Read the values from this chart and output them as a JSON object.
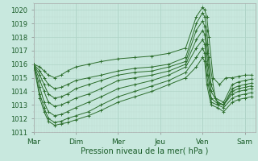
{
  "xlabel": "Pression niveau de la mer( hPa )",
  "bg_color": "#c8e8de",
  "grid_major_color": "#b0d4c8",
  "grid_minor_color": "#c0dcd4",
  "line_color": "#2d6e2d",
  "ylim": [
    1011.0,
    1020.5
  ],
  "xlim": [
    0.0,
    5.25
  ],
  "yticks": [
    1011,
    1012,
    1013,
    1014,
    1015,
    1016,
    1017,
    1018,
    1019,
    1020
  ],
  "days": [
    "Mar",
    "Dim",
    "Mer",
    "Jeu",
    "Ven",
    "Sam"
  ],
  "day_x": [
    0.0,
    1.0,
    2.0,
    3.0,
    4.0,
    5.0
  ],
  "lines": [
    {
      "x": [
        0.0,
        0.15,
        0.25,
        0.35,
        0.5,
        0.65,
        0.8,
        1.0,
        1.3,
        1.6,
        2.0,
        2.4,
        2.8,
        3.2,
        3.6,
        3.85,
        4.0,
        4.05,
        4.1,
        4.15,
        4.25,
        4.4,
        4.55,
        4.7,
        4.85,
        5.0,
        5.15
      ],
      "y": [
        1016.0,
        1015.8,
        1015.5,
        1015.2,
        1015.0,
        1015.2,
        1015.5,
        1015.8,
        1016.0,
        1016.2,
        1016.4,
        1016.5,
        1016.6,
        1016.8,
        1017.2,
        1019.5,
        1020.2,
        1020.0,
        1019.5,
        1018.0,
        1015.0,
        1014.5,
        1015.0,
        1015.0,
        1015.1,
        1015.2,
        1015.2
      ]
    },
    {
      "x": [
        0.0,
        0.15,
        0.25,
        0.35,
        0.5,
        0.65,
        0.8,
        1.0,
        1.3,
        1.6,
        2.0,
        2.4,
        2.8,
        3.2,
        3.6,
        3.85,
        4.0,
        4.05,
        4.1,
        4.15,
        4.3,
        4.5,
        4.7,
        4.85,
        5.0,
        5.15
      ],
      "y": [
        1016.0,
        1015.5,
        1015.0,
        1014.5,
        1014.2,
        1014.3,
        1014.5,
        1014.8,
        1015.0,
        1015.2,
        1015.5,
        1015.7,
        1015.8,
        1016.0,
        1016.5,
        1019.0,
        1019.8,
        1019.5,
        1018.5,
        1016.5,
        1013.5,
        1013.2,
        1014.5,
        1014.7,
        1014.8,
        1014.9
      ]
    },
    {
      "x": [
        0.0,
        0.15,
        0.25,
        0.35,
        0.5,
        0.65,
        0.8,
        1.0,
        1.3,
        1.6,
        2.0,
        2.4,
        2.8,
        3.2,
        3.6,
        3.85,
        4.0,
        4.05,
        4.1,
        4.2,
        4.35,
        4.5,
        4.7,
        4.85,
        5.0,
        5.15
      ],
      "y": [
        1016.0,
        1015.2,
        1014.5,
        1013.8,
        1013.5,
        1013.6,
        1013.8,
        1014.2,
        1014.5,
        1014.8,
        1015.2,
        1015.4,
        1015.5,
        1015.8,
        1016.2,
        1018.5,
        1019.2,
        1018.8,
        1017.5,
        1014.5,
        1013.2,
        1013.0,
        1014.2,
        1014.4,
        1014.5,
        1014.6
      ]
    },
    {
      "x": [
        0.0,
        0.15,
        0.25,
        0.35,
        0.5,
        0.65,
        0.8,
        1.0,
        1.3,
        1.6,
        2.0,
        2.4,
        2.8,
        3.2,
        3.6,
        3.85,
        4.0,
        4.05,
        4.1,
        4.2,
        4.35,
        4.5,
        4.7,
        4.85,
        5.0,
        5.15
      ],
      "y": [
        1016.0,
        1014.8,
        1014.0,
        1013.2,
        1012.9,
        1013.0,
        1013.2,
        1013.5,
        1013.8,
        1014.2,
        1014.8,
        1015.0,
        1015.2,
        1015.5,
        1016.0,
        1017.8,
        1018.5,
        1018.2,
        1016.8,
        1014.0,
        1013.2,
        1013.0,
        1014.0,
        1014.2,
        1014.3,
        1014.4
      ]
    },
    {
      "x": [
        0.0,
        0.15,
        0.25,
        0.35,
        0.5,
        0.65,
        0.8,
        1.0,
        1.3,
        1.6,
        2.0,
        2.4,
        2.8,
        3.2,
        3.6,
        3.85,
        4.0,
        4.05,
        4.1,
        4.2,
        4.35,
        4.5,
        4.7,
        4.85,
        5.0,
        5.15
      ],
      "y": [
        1016.0,
        1014.3,
        1013.2,
        1012.5,
        1012.2,
        1012.3,
        1012.5,
        1012.8,
        1013.2,
        1013.6,
        1014.2,
        1014.5,
        1014.8,
        1015.2,
        1015.8,
        1017.2,
        1017.8,
        1017.5,
        1016.0,
        1013.5,
        1013.1,
        1013.0,
        1013.8,
        1014.0,
        1014.1,
        1014.2
      ]
    },
    {
      "x": [
        0.0,
        0.15,
        0.25,
        0.35,
        0.5,
        0.65,
        0.8,
        1.0,
        1.3,
        1.6,
        2.0,
        2.4,
        2.8,
        3.2,
        3.6,
        3.85,
        4.0,
        4.05,
        4.1,
        4.2,
        4.35,
        4.5,
        4.7,
        4.85,
        5.0,
        5.15
      ],
      "y": [
        1016.0,
        1013.8,
        1012.8,
        1012.0,
        1011.7,
        1011.8,
        1012.0,
        1012.2,
        1012.5,
        1013.0,
        1013.6,
        1014.0,
        1014.4,
        1014.8,
        1015.4,
        1016.5,
        1017.2,
        1016.8,
        1015.2,
        1013.2,
        1013.0,
        1012.8,
        1013.5,
        1013.7,
        1013.8,
        1013.9
      ]
    },
    {
      "x": [
        0.0,
        0.15,
        0.25,
        0.35,
        0.5,
        0.65,
        0.8,
        1.0,
        1.3,
        1.6,
        2.0,
        2.4,
        2.8,
        3.2,
        3.6,
        3.85,
        4.0,
        4.05,
        4.1,
        4.2,
        4.35,
        4.5,
        4.7,
        4.85,
        5.0,
        5.15
      ],
      "y": [
        1016.0,
        1013.5,
        1012.5,
        1011.8,
        1011.5,
        1011.6,
        1011.7,
        1011.9,
        1012.2,
        1012.6,
        1013.2,
        1013.6,
        1014.0,
        1014.5,
        1015.0,
        1015.8,
        1016.5,
        1016.2,
        1014.5,
        1013.0,
        1012.8,
        1012.5,
        1013.2,
        1013.4,
        1013.5,
        1013.6
      ]
    }
  ]
}
